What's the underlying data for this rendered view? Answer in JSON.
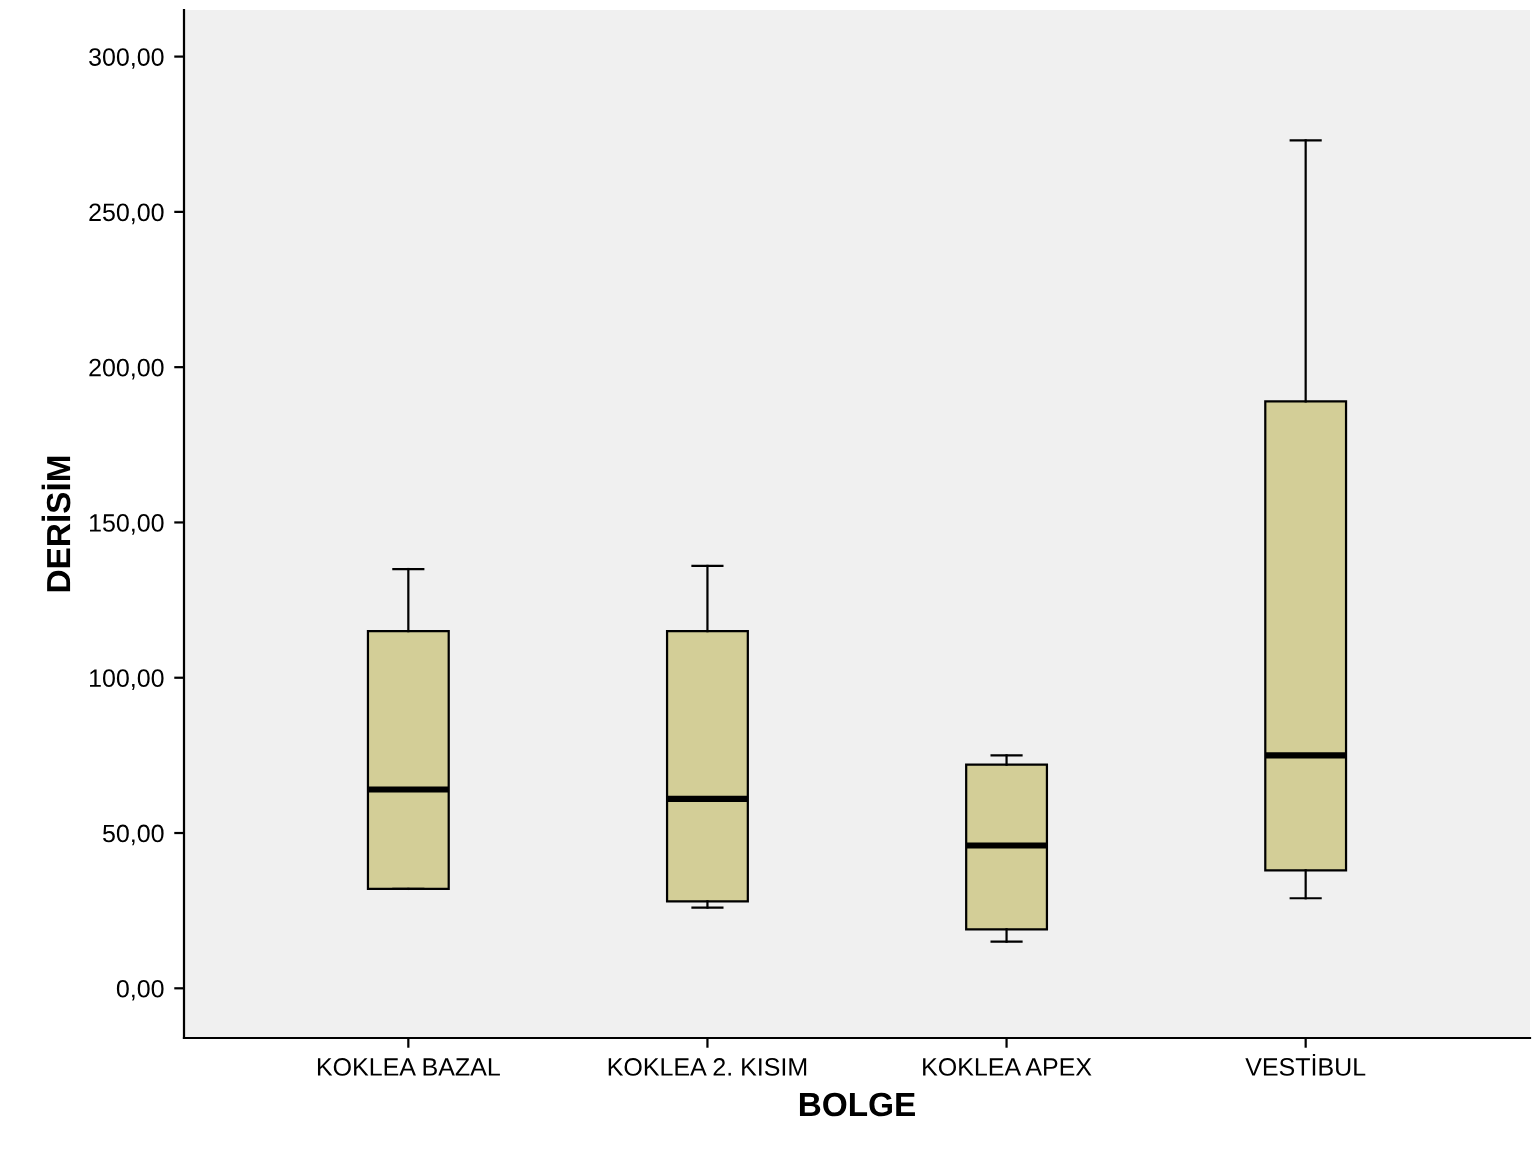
{
  "chart_data": {
    "type": "box",
    "xlabel": "BOLGE",
    "ylabel": "DERİSİM",
    "categories": [
      "KOKLEA BAZAL",
      "KOKLEA 2. KISIM",
      "KOKLEA APEX",
      "VESTİBUL"
    ],
    "boxes": [
      {
        "low": 32,
        "q1": 32,
        "median": 64,
        "q3": 115,
        "high": 135
      },
      {
        "low": 26,
        "q1": 28,
        "median": 61,
        "q3": 115,
        "high": 136
      },
      {
        "low": 15,
        "q1": 19,
        "median": 46,
        "q3": 72,
        "high": 75
      },
      {
        "low": 29,
        "q1": 38,
        "median": 75,
        "q3": 189,
        "high": 273
      }
    ],
    "color": "#d3ce97",
    "ylim": [
      -16,
      315
    ],
    "yticks": [
      {
        "value": 0,
        "label": "0,00"
      },
      {
        "value": 50,
        "label": "50,00"
      },
      {
        "value": 100,
        "label": "100,00"
      },
      {
        "value": 150,
        "label": "150,00"
      },
      {
        "value": 200,
        "label": "200,00"
      },
      {
        "value": 250,
        "label": "250,00"
      },
      {
        "value": 300,
        "label": "300,00"
      }
    ],
    "grid": false,
    "legend": false
  }
}
